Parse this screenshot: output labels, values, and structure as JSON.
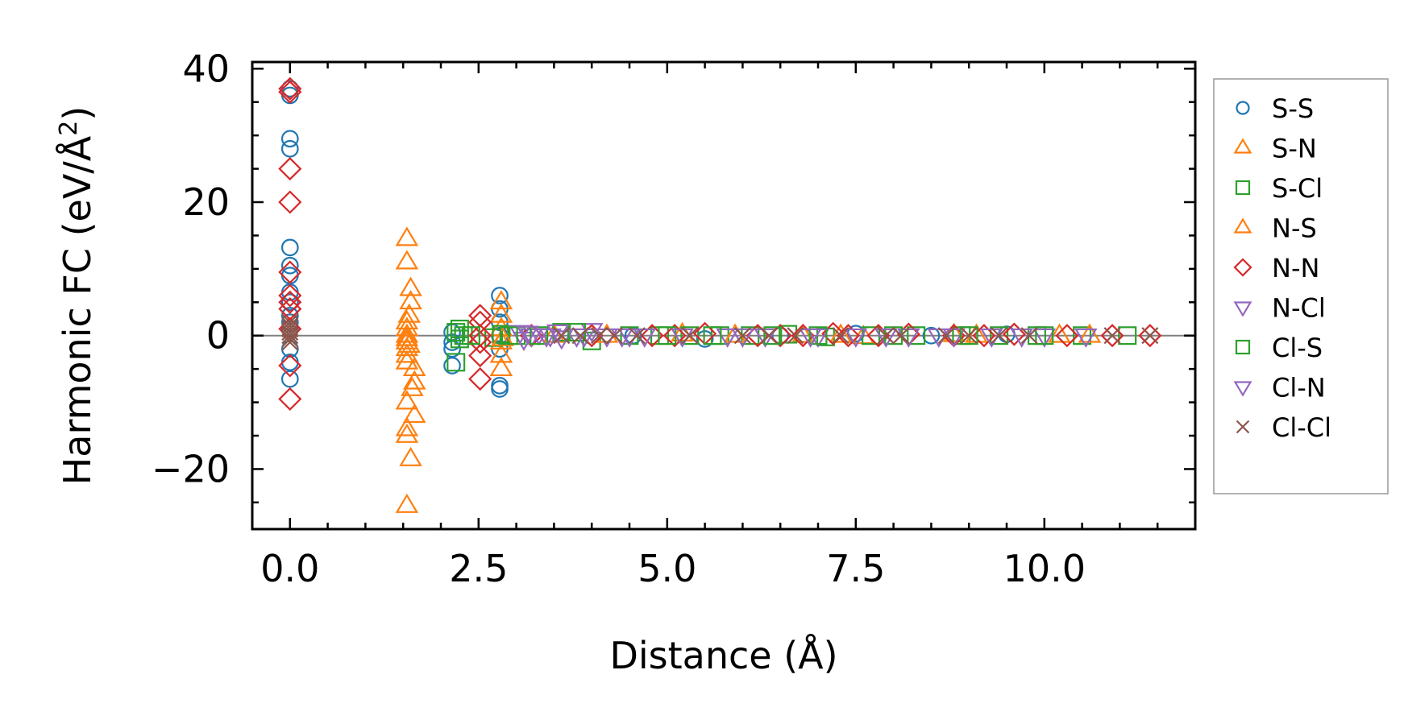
{
  "chart_data": {
    "type": "scatter",
    "title": "",
    "xlabel": "Distance (Å)",
    "ylabel_main": "Harmonic FC (eV/Å",
    "ylabel_sup": "2",
    "ylabel_close": ")",
    "xlim": [
      -0.5,
      12.0
    ],
    "ylim": [
      -29,
      41
    ],
    "x_ticks": [
      0.0,
      2.5,
      5.0,
      7.5,
      10.0
    ],
    "x_tick_labels": [
      "0.0",
      "2.5",
      "5.0",
      "7.5",
      "10.0"
    ],
    "y_ticks": [
      -20,
      0,
      20,
      40
    ],
    "y_tick_labels": [
      "−20",
      "0",
      "20",
      "40"
    ],
    "zero_line": 0,
    "legend_position": "right, outside",
    "series": [
      {
        "name": "S-S",
        "marker": "circle",
        "color": "#1f77b4",
        "points": [
          [
            0,
            36
          ],
          [
            0,
            37
          ],
          [
            0,
            29.5
          ],
          [
            0,
            28
          ],
          [
            0,
            13.2
          ],
          [
            0,
            10.5
          ],
          [
            0,
            9
          ],
          [
            0,
            6.5
          ],
          [
            0,
            5
          ],
          [
            0,
            3
          ],
          [
            0,
            2
          ],
          [
            0,
            1
          ],
          [
            0,
            -2
          ],
          [
            0,
            -4
          ],
          [
            0,
            -6.5
          ],
          [
            2.15,
            0.5
          ],
          [
            2.15,
            -1
          ],
          [
            2.15,
            -2
          ],
          [
            2.15,
            -4.5
          ],
          [
            2.78,
            6
          ],
          [
            2.78,
            4
          ],
          [
            2.78,
            2
          ],
          [
            2.78,
            0
          ],
          [
            2.78,
            -2
          ],
          [
            2.78,
            -7.5
          ],
          [
            2.78,
            -8
          ],
          [
            4.55,
            0
          ],
          [
            5.5,
            -0.5
          ],
          [
            6.5,
            0
          ],
          [
            7.5,
            0.3
          ],
          [
            8.5,
            0
          ],
          [
            9.5,
            0.2
          ]
        ]
      },
      {
        "name": "S-N",
        "marker": "triangle-up",
        "color": "#ff7f0e",
        "points": [
          [
            1.55,
            14.5
          ],
          [
            1.55,
            11
          ],
          [
            1.55,
            2
          ],
          [
            1.55,
            1
          ],
          [
            1.55,
            0
          ],
          [
            1.55,
            -0.5
          ],
          [
            1.55,
            -1
          ],
          [
            1.55,
            -2
          ],
          [
            1.55,
            -3
          ],
          [
            1.55,
            -4
          ],
          [
            1.55,
            -10
          ],
          [
            1.55,
            -14
          ],
          [
            1.55,
            -15
          ],
          [
            1.55,
            -25.5
          ],
          [
            1.6,
            7
          ],
          [
            1.6,
            5
          ],
          [
            1.6,
            -18.5
          ],
          [
            1.65,
            -5
          ],
          [
            1.65,
            -7
          ],
          [
            1.65,
            -12
          ],
          [
            2.8,
            5
          ],
          [
            2.8,
            3
          ],
          [
            2.8,
            1
          ],
          [
            2.8,
            -1
          ],
          [
            2.8,
            -3
          ],
          [
            2.8,
            -5
          ],
          [
            3.5,
            0
          ],
          [
            5.2,
            0.2
          ],
          [
            6.8,
            0
          ],
          [
            7.6,
            -0.2
          ],
          [
            8.8,
            0.1
          ],
          [
            10.2,
            0
          ]
        ]
      },
      {
        "name": "S-Cl",
        "marker": "square",
        "color": "#2ca02c",
        "points": [
          [
            2.2,
            -4
          ],
          [
            2.2,
            0.5
          ],
          [
            2.25,
            -0.5
          ],
          [
            2.3,
            0
          ],
          [
            2.7,
            -0.3
          ],
          [
            2.8,
            0.2
          ],
          [
            3.0,
            0
          ],
          [
            3.6,
            0.5
          ],
          [
            4.0,
            -0.8
          ],
          [
            4.5,
            0
          ],
          [
            4.9,
            0
          ],
          [
            5.3,
            0
          ],
          [
            5.7,
            0
          ],
          [
            6.1,
            0
          ],
          [
            6.6,
            0.2
          ],
          [
            7.1,
            -0.2
          ],
          [
            7.7,
            0
          ],
          [
            8.3,
            0
          ],
          [
            8.9,
            0
          ],
          [
            9.4,
            0
          ],
          [
            9.9,
            0
          ],
          [
            10.5,
            0
          ],
          [
            11.1,
            0
          ]
        ]
      },
      {
        "name": "N-S",
        "marker": "triangle-up",
        "color": "#ff7f0e",
        "points": [
          [
            1.58,
            3
          ],
          [
            1.58,
            -1.5
          ],
          [
            1.62,
            -8
          ],
          [
            2.82,
            -0.5
          ],
          [
            4.2,
            0
          ],
          [
            5.9,
            0
          ],
          [
            7.3,
            0
          ],
          [
            9.1,
            0
          ],
          [
            10.6,
            0
          ]
        ]
      },
      {
        "name": "N-N",
        "marker": "diamond",
        "color": "#d62728",
        "points": [
          [
            0,
            37
          ],
          [
            0,
            36.5
          ],
          [
            0,
            25
          ],
          [
            0,
            20
          ],
          [
            0,
            9.5
          ],
          [
            0,
            6
          ],
          [
            0,
            5
          ],
          [
            0,
            4
          ],
          [
            0,
            1
          ],
          [
            0,
            -4.5
          ],
          [
            0,
            -9.5
          ],
          [
            2.52,
            3
          ],
          [
            2.52,
            2
          ],
          [
            2.52,
            0
          ],
          [
            2.52,
            -1
          ],
          [
            2.52,
            -3
          ],
          [
            2.52,
            -6.5
          ],
          [
            3.2,
            0
          ],
          [
            4.0,
            0
          ],
          [
            4.8,
            0
          ],
          [
            5.1,
            0
          ],
          [
            5.5,
            0.3
          ],
          [
            6.2,
            0
          ],
          [
            6.5,
            0
          ],
          [
            6.8,
            0
          ],
          [
            7.2,
            0.3
          ],
          [
            7.4,
            0
          ],
          [
            7.8,
            0
          ],
          [
            8.2,
            0.2
          ],
          [
            8.8,
            0
          ],
          [
            9.2,
            0
          ],
          [
            9.6,
            0.2
          ],
          [
            10.3,
            0
          ],
          [
            10.9,
            0
          ],
          [
            11.4,
            0
          ]
        ]
      },
      {
        "name": "N-Cl",
        "marker": "triangle-down",
        "color": "#9467bd",
        "points": [
          [
            3.05,
            0.5
          ],
          [
            3.1,
            -0.5
          ],
          [
            3.2,
            0
          ],
          [
            3.3,
            0.3
          ],
          [
            3.45,
            0
          ],
          [
            3.6,
            -0.3
          ],
          [
            3.8,
            0
          ],
          [
            4.0,
            0.8
          ],
          [
            4.2,
            0
          ],
          [
            4.4,
            0
          ],
          [
            4.7,
            0
          ],
          [
            5.8,
            0
          ],
          [
            6.3,
            0
          ],
          [
            7.0,
            0
          ],
          [
            7.5,
            0
          ],
          [
            8.2,
            0
          ],
          [
            8.8,
            0
          ],
          [
            9.3,
            0
          ],
          [
            10.0,
            0
          ],
          [
            10.55,
            0
          ]
        ]
      },
      {
        "name": "Cl-S",
        "marker": "square",
        "color": "#2ca02c",
        "points": [
          [
            2.25,
            1
          ],
          [
            2.4,
            0
          ],
          [
            2.9,
            0
          ],
          [
            3.3,
            0
          ],
          [
            3.8,
            0.5
          ],
          [
            5.0,
            0
          ],
          [
            5.6,
            0
          ],
          [
            6.4,
            0
          ],
          [
            7.0,
            0
          ],
          [
            8.0,
            0
          ],
          [
            9.0,
            0
          ],
          [
            10.0,
            0
          ]
        ]
      },
      {
        "name": "Cl-N",
        "marker": "triangle-down",
        "color": "#9467bd",
        "points": [
          [
            3.15,
            0.4
          ],
          [
            3.4,
            0
          ],
          [
            3.55,
            0.6
          ],
          [
            3.9,
            0
          ],
          [
            4.5,
            0
          ],
          [
            5.2,
            0
          ],
          [
            6.0,
            0
          ],
          [
            6.9,
            0
          ],
          [
            7.9,
            0
          ],
          [
            8.6,
            0
          ],
          [
            9.7,
            0
          ]
        ]
      },
      {
        "name": "Cl-Cl",
        "marker": "x",
        "color": "#8c564b",
        "points": [
          [
            0,
            0
          ],
          [
            0,
            0.5
          ],
          [
            0,
            1
          ],
          [
            0,
            1.5
          ],
          [
            0,
            2
          ],
          [
            0,
            -0.5
          ],
          [
            0,
            -1
          ],
          [
            3.6,
            0
          ],
          [
            3.85,
            0
          ],
          [
            4.1,
            0
          ],
          [
            4.3,
            0
          ],
          [
            4.6,
            0
          ],
          [
            5.3,
            0
          ],
          [
            6.0,
            0
          ],
          [
            6.35,
            0
          ],
          [
            6.7,
            0
          ],
          [
            7.3,
            0
          ],
          [
            7.9,
            0
          ],
          [
            8.1,
            0
          ],
          [
            8.7,
            0
          ],
          [
            9.0,
            0
          ],
          [
            9.4,
            0
          ],
          [
            9.8,
            0
          ],
          [
            10.9,
            0
          ],
          [
            11.4,
            0
          ]
        ]
      }
    ]
  }
}
